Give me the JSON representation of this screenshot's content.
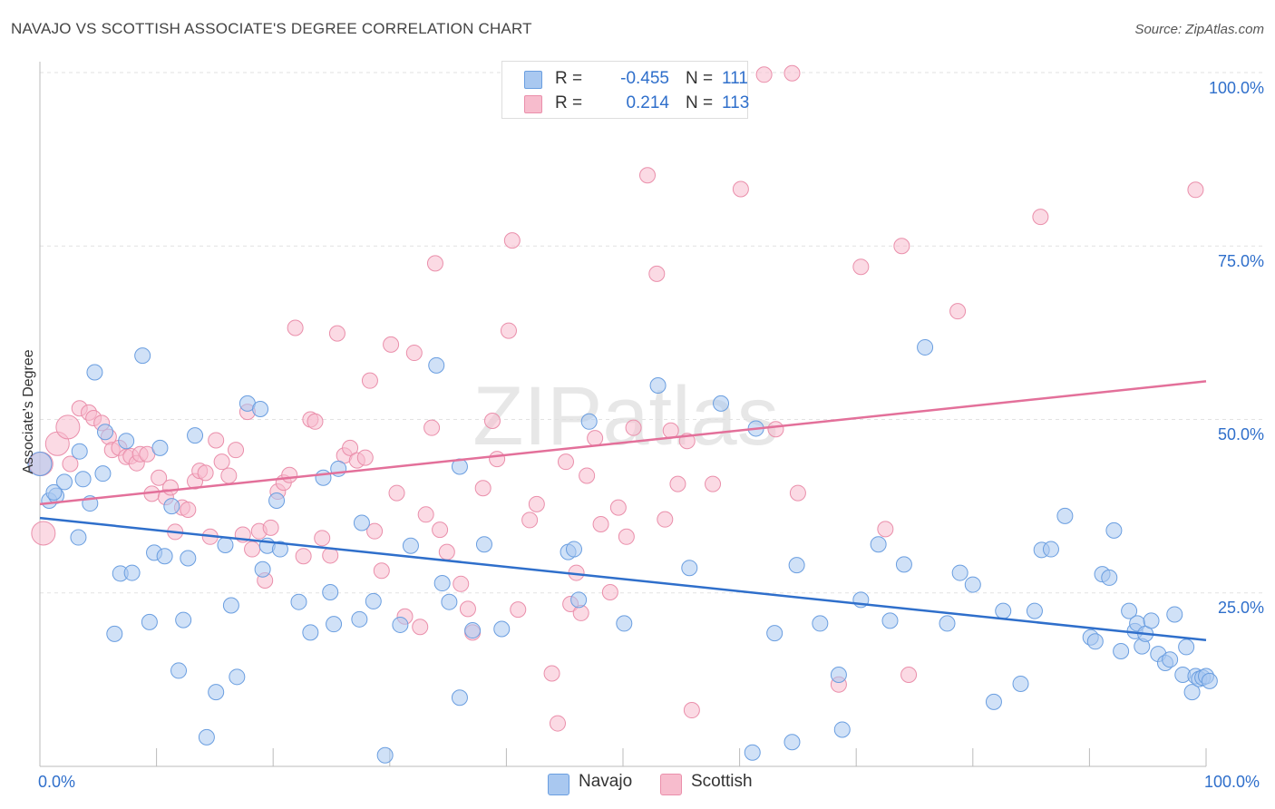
{
  "title": "NAVAJO VS SCOTTISH ASSOCIATE'S DEGREE CORRELATION CHART",
  "source": "Source: ZipAtlas.com",
  "watermark": "ZIPatlas",
  "colors": {
    "navajo_fill": "#a9c8f0",
    "navajo_stroke": "#6a9ee0",
    "navajo_line": "#2f6fcb",
    "scottish_fill": "#f7bccd",
    "scottish_stroke": "#ea8fab",
    "scottish_line": "#e3709a",
    "accent_text": "#2f6fcb"
  },
  "legend_top": {
    "rows": [
      {
        "swatch": "navajo",
        "r_label": "R =",
        "r_value": "-0.455",
        "n_label": "N =",
        "n_value": "111"
      },
      {
        "swatch": "scottish",
        "r_label": "R =",
        "r_value": "0.214",
        "n_label": "N =",
        "n_value": "113"
      }
    ]
  },
  "legend_bottom": {
    "items": [
      {
        "label": "Navajo"
      },
      {
        "label": "Scottish"
      }
    ]
  },
  "chart_data": {
    "type": "scatter",
    "title": "NAVAJO VS SCOTTISH ASSOCIATE'S DEGREE CORRELATION CHART",
    "xlabel": "",
    "ylabel": "Associate's Degree",
    "xlim": [
      0,
      100
    ],
    "ylim": [
      0,
      100
    ],
    "x_tick_labels": [
      "0.0%",
      "100.0%"
    ],
    "y_tick_labels": [
      "25.0%",
      "50.0%",
      "75.0%",
      "100.0%"
    ],
    "y_ticks": [
      25,
      50,
      75,
      100
    ],
    "grid": "horizontal-dashed",
    "legend_position": "bottom",
    "series": [
      {
        "name": "Navajo",
        "r": -0.455,
        "n": 111,
        "trend": {
          "x0": 0,
          "y0": 35.8,
          "x1": 100,
          "y1": 18.2
        },
        "points": [
          [
            0.8,
            38.3
          ],
          [
            1.4,
            39.0
          ],
          [
            1.2,
            39.5
          ],
          [
            2.1,
            41.0
          ],
          [
            3.3,
            33.0
          ],
          [
            3.4,
            45.4
          ],
          [
            3.7,
            41.4
          ],
          [
            4.3,
            37.9
          ],
          [
            4.7,
            56.8
          ],
          [
            5.4,
            42.2
          ],
          [
            5.6,
            48.2
          ],
          [
            6.4,
            19.1
          ],
          [
            6.9,
            27.8
          ],
          [
            7.4,
            46.9
          ],
          [
            7.9,
            27.9
          ],
          [
            8.8,
            59.2
          ],
          [
            9.4,
            20.8
          ],
          [
            9.8,
            30.8
          ],
          [
            10.3,
            45.9
          ],
          [
            10.7,
            30.3
          ],
          [
            11.3,
            37.5
          ],
          [
            11.9,
            13.8
          ],
          [
            12.3,
            21.1
          ],
          [
            12.7,
            30.0
          ],
          [
            13.3,
            47.7
          ],
          [
            14.3,
            4.2
          ],
          [
            15.1,
            10.7
          ],
          [
            15.9,
            31.9
          ],
          [
            16.4,
            23.2
          ],
          [
            16.9,
            12.9
          ],
          [
            17.8,
            52.3
          ],
          [
            18.9,
            51.5
          ],
          [
            19.1,
            28.4
          ],
          [
            19.5,
            31.8
          ],
          [
            20.3,
            38.3
          ],
          [
            20.6,
            31.3
          ],
          [
            22.2,
            23.7
          ],
          [
            23.2,
            19.3
          ],
          [
            24.3,
            41.6
          ],
          [
            24.9,
            25.1
          ],
          [
            25.2,
            20.5
          ],
          [
            25.6,
            42.9
          ],
          [
            27.4,
            21.2
          ],
          [
            27.6,
            35.1
          ],
          [
            28.6,
            23.8
          ],
          [
            29.6,
            1.6
          ],
          [
            30.9,
            20.4
          ],
          [
            31.8,
            31.8
          ],
          [
            34.0,
            57.8
          ],
          [
            34.5,
            26.4
          ],
          [
            35.1,
            23.7
          ],
          [
            36.0,
            9.9
          ],
          [
            36.0,
            43.2
          ],
          [
            37.1,
            19.6
          ],
          [
            38.1,
            32.0
          ],
          [
            39.6,
            19.8
          ],
          [
            45.3,
            30.9
          ],
          [
            45.8,
            31.3
          ],
          [
            46.2,
            24.0
          ],
          [
            47.1,
            49.7
          ],
          [
            50.1,
            20.6
          ],
          [
            53.0,
            54.9
          ],
          [
            55.7,
            28.6
          ],
          [
            58.4,
            52.3
          ],
          [
            61.1,
            2.0
          ],
          [
            61.4,
            48.7
          ],
          [
            63.0,
            19.2
          ],
          [
            64.5,
            3.5
          ],
          [
            64.9,
            29.0
          ],
          [
            66.9,
            20.6
          ],
          [
            68.5,
            13.2
          ],
          [
            68.8,
            5.3
          ],
          [
            70.4,
            24.0
          ],
          [
            71.9,
            32.0
          ],
          [
            72.9,
            21.0
          ],
          [
            74.1,
            29.1
          ],
          [
            75.9,
            60.4
          ],
          [
            77.8,
            20.6
          ],
          [
            78.9,
            27.9
          ],
          [
            80.0,
            26.2
          ],
          [
            81.8,
            9.3
          ],
          [
            82.6,
            22.4
          ],
          [
            84.1,
            11.9
          ],
          [
            85.3,
            22.4
          ],
          [
            85.9,
            31.2
          ],
          [
            86.7,
            31.3
          ],
          [
            87.9,
            36.1
          ],
          [
            90.1,
            18.6
          ],
          [
            90.5,
            18.0
          ],
          [
            91.1,
            27.7
          ],
          [
            91.7,
            27.2
          ],
          [
            92.1,
            34.0
          ],
          [
            92.7,
            16.6
          ],
          [
            93.4,
            22.4
          ],
          [
            93.9,
            19.5
          ],
          [
            94.1,
            20.6
          ],
          [
            94.5,
            17.3
          ],
          [
            94.8,
            19.1
          ],
          [
            95.3,
            21.0
          ],
          [
            95.9,
            16.2
          ],
          [
            96.5,
            14.9
          ],
          [
            96.9,
            15.4
          ],
          [
            97.3,
            21.9
          ],
          [
            98.0,
            13.2
          ],
          [
            98.3,
            17.2
          ],
          [
            98.8,
            10.7
          ],
          [
            99.1,
            13.0
          ],
          [
            99.4,
            12.6
          ],
          [
            99.7,
            12.8
          ],
          [
            100.0,
            13.0
          ],
          [
            100.3,
            12.3
          ]
        ],
        "large_points": [
          [
            0.0,
            43.6
          ]
        ]
      },
      {
        "name": "Scottish",
        "r": 0.214,
        "n": 113,
        "trend": {
          "x0": 0,
          "y0": 37.8,
          "x1": 100,
          "y1": 55.5
        },
        "points": [
          [
            2.6,
            43.6
          ],
          [
            3.4,
            51.6
          ],
          [
            4.2,
            51.0
          ],
          [
            4.6,
            50.2
          ],
          [
            5.3,
            49.5
          ],
          [
            5.9,
            47.5
          ],
          [
            6.2,
            45.6
          ],
          [
            6.8,
            45.9
          ],
          [
            7.4,
            44.6
          ],
          [
            7.8,
            44.7
          ],
          [
            8.3,
            43.7
          ],
          [
            8.6,
            45.0
          ],
          [
            9.2,
            45.0
          ],
          [
            9.6,
            39.3
          ],
          [
            10.2,
            41.6
          ],
          [
            10.8,
            38.8
          ],
          [
            11.2,
            40.2
          ],
          [
            11.6,
            33.8
          ],
          [
            12.2,
            37.3
          ],
          [
            12.7,
            37.0
          ],
          [
            13.3,
            41.1
          ],
          [
            13.7,
            42.6
          ],
          [
            14.2,
            42.3
          ],
          [
            14.6,
            33.1
          ],
          [
            15.1,
            47.0
          ],
          [
            15.6,
            43.9
          ],
          [
            16.2,
            41.9
          ],
          [
            16.8,
            45.6
          ],
          [
            17.4,
            33.4
          ],
          [
            17.8,
            51.1
          ],
          [
            18.2,
            31.3
          ],
          [
            18.8,
            33.9
          ],
          [
            19.3,
            26.8
          ],
          [
            19.8,
            34.4
          ],
          [
            20.4,
            39.6
          ],
          [
            20.9,
            40.9
          ],
          [
            21.4,
            42.0
          ],
          [
            21.9,
            63.2
          ],
          [
            22.6,
            30.3
          ],
          [
            23.2,
            50.0
          ],
          [
            23.6,
            49.7
          ],
          [
            24.2,
            32.9
          ],
          [
            24.9,
            30.4
          ],
          [
            25.5,
            62.4
          ],
          [
            26.1,
            44.8
          ],
          [
            26.6,
            45.9
          ],
          [
            27.2,
            44.1
          ],
          [
            27.9,
            44.5
          ],
          [
            28.3,
            55.6
          ],
          [
            28.7,
            33.9
          ],
          [
            29.3,
            28.2
          ],
          [
            30.1,
            60.8
          ],
          [
            30.6,
            39.4
          ],
          [
            31.3,
            21.6
          ],
          [
            32.1,
            59.6
          ],
          [
            32.6,
            20.1
          ],
          [
            33.1,
            36.3
          ],
          [
            33.6,
            48.8
          ],
          [
            34.3,
            34.1
          ],
          [
            34.9,
            30.9
          ],
          [
            33.9,
            72.5
          ],
          [
            36.1,
            26.3
          ],
          [
            36.7,
            22.7
          ],
          [
            37.1,
            19.3
          ],
          [
            38.0,
            40.1
          ],
          [
            38.8,
            49.8
          ],
          [
            39.2,
            44.3
          ],
          [
            40.2,
            62.8
          ],
          [
            40.5,
            75.8
          ],
          [
            41.0,
            22.6
          ],
          [
            42.0,
            35.5
          ],
          [
            42.6,
            37.8
          ],
          [
            43.9,
            13.4
          ],
          [
            44.4,
            6.2
          ],
          [
            45.1,
            43.9
          ],
          [
            45.5,
            23.4
          ],
          [
            46.0,
            27.9
          ],
          [
            46.4,
            22.1
          ],
          [
            46.9,
            41.9
          ],
          [
            47.6,
            47.3
          ],
          [
            48.1,
            34.9
          ],
          [
            48.9,
            25.1
          ],
          [
            49.6,
            37.3
          ],
          [
            50.3,
            33.1
          ],
          [
            50.9,
            48.8
          ],
          [
            52.1,
            85.2
          ],
          [
            52.9,
            71.0
          ],
          [
            53.6,
            35.6
          ],
          [
            54.1,
            48.4
          ],
          [
            54.7,
            40.7
          ],
          [
            55.5,
            46.9
          ],
          [
            55.9,
            8.1
          ],
          [
            57.7,
            40.7
          ],
          [
            60.1,
            83.2
          ],
          [
            62.1,
            99.7
          ],
          [
            63.1,
            48.6
          ],
          [
            64.5,
            99.9
          ],
          [
            65.0,
            39.4
          ],
          [
            68.5,
            11.8
          ],
          [
            70.4,
            72.0
          ],
          [
            72.5,
            34.2
          ],
          [
            73.9,
            75.0
          ],
          [
            74.5,
            13.2
          ],
          [
            78.7,
            65.6
          ],
          [
            85.8,
            79.2
          ],
          [
            99.1,
            83.1
          ]
        ],
        "large_points": [
          [
            0.1,
            43.6
          ],
          [
            0.3,
            33.6
          ],
          [
            1.5,
            46.5
          ],
          [
            2.4,
            48.9
          ]
        ]
      }
    ]
  }
}
